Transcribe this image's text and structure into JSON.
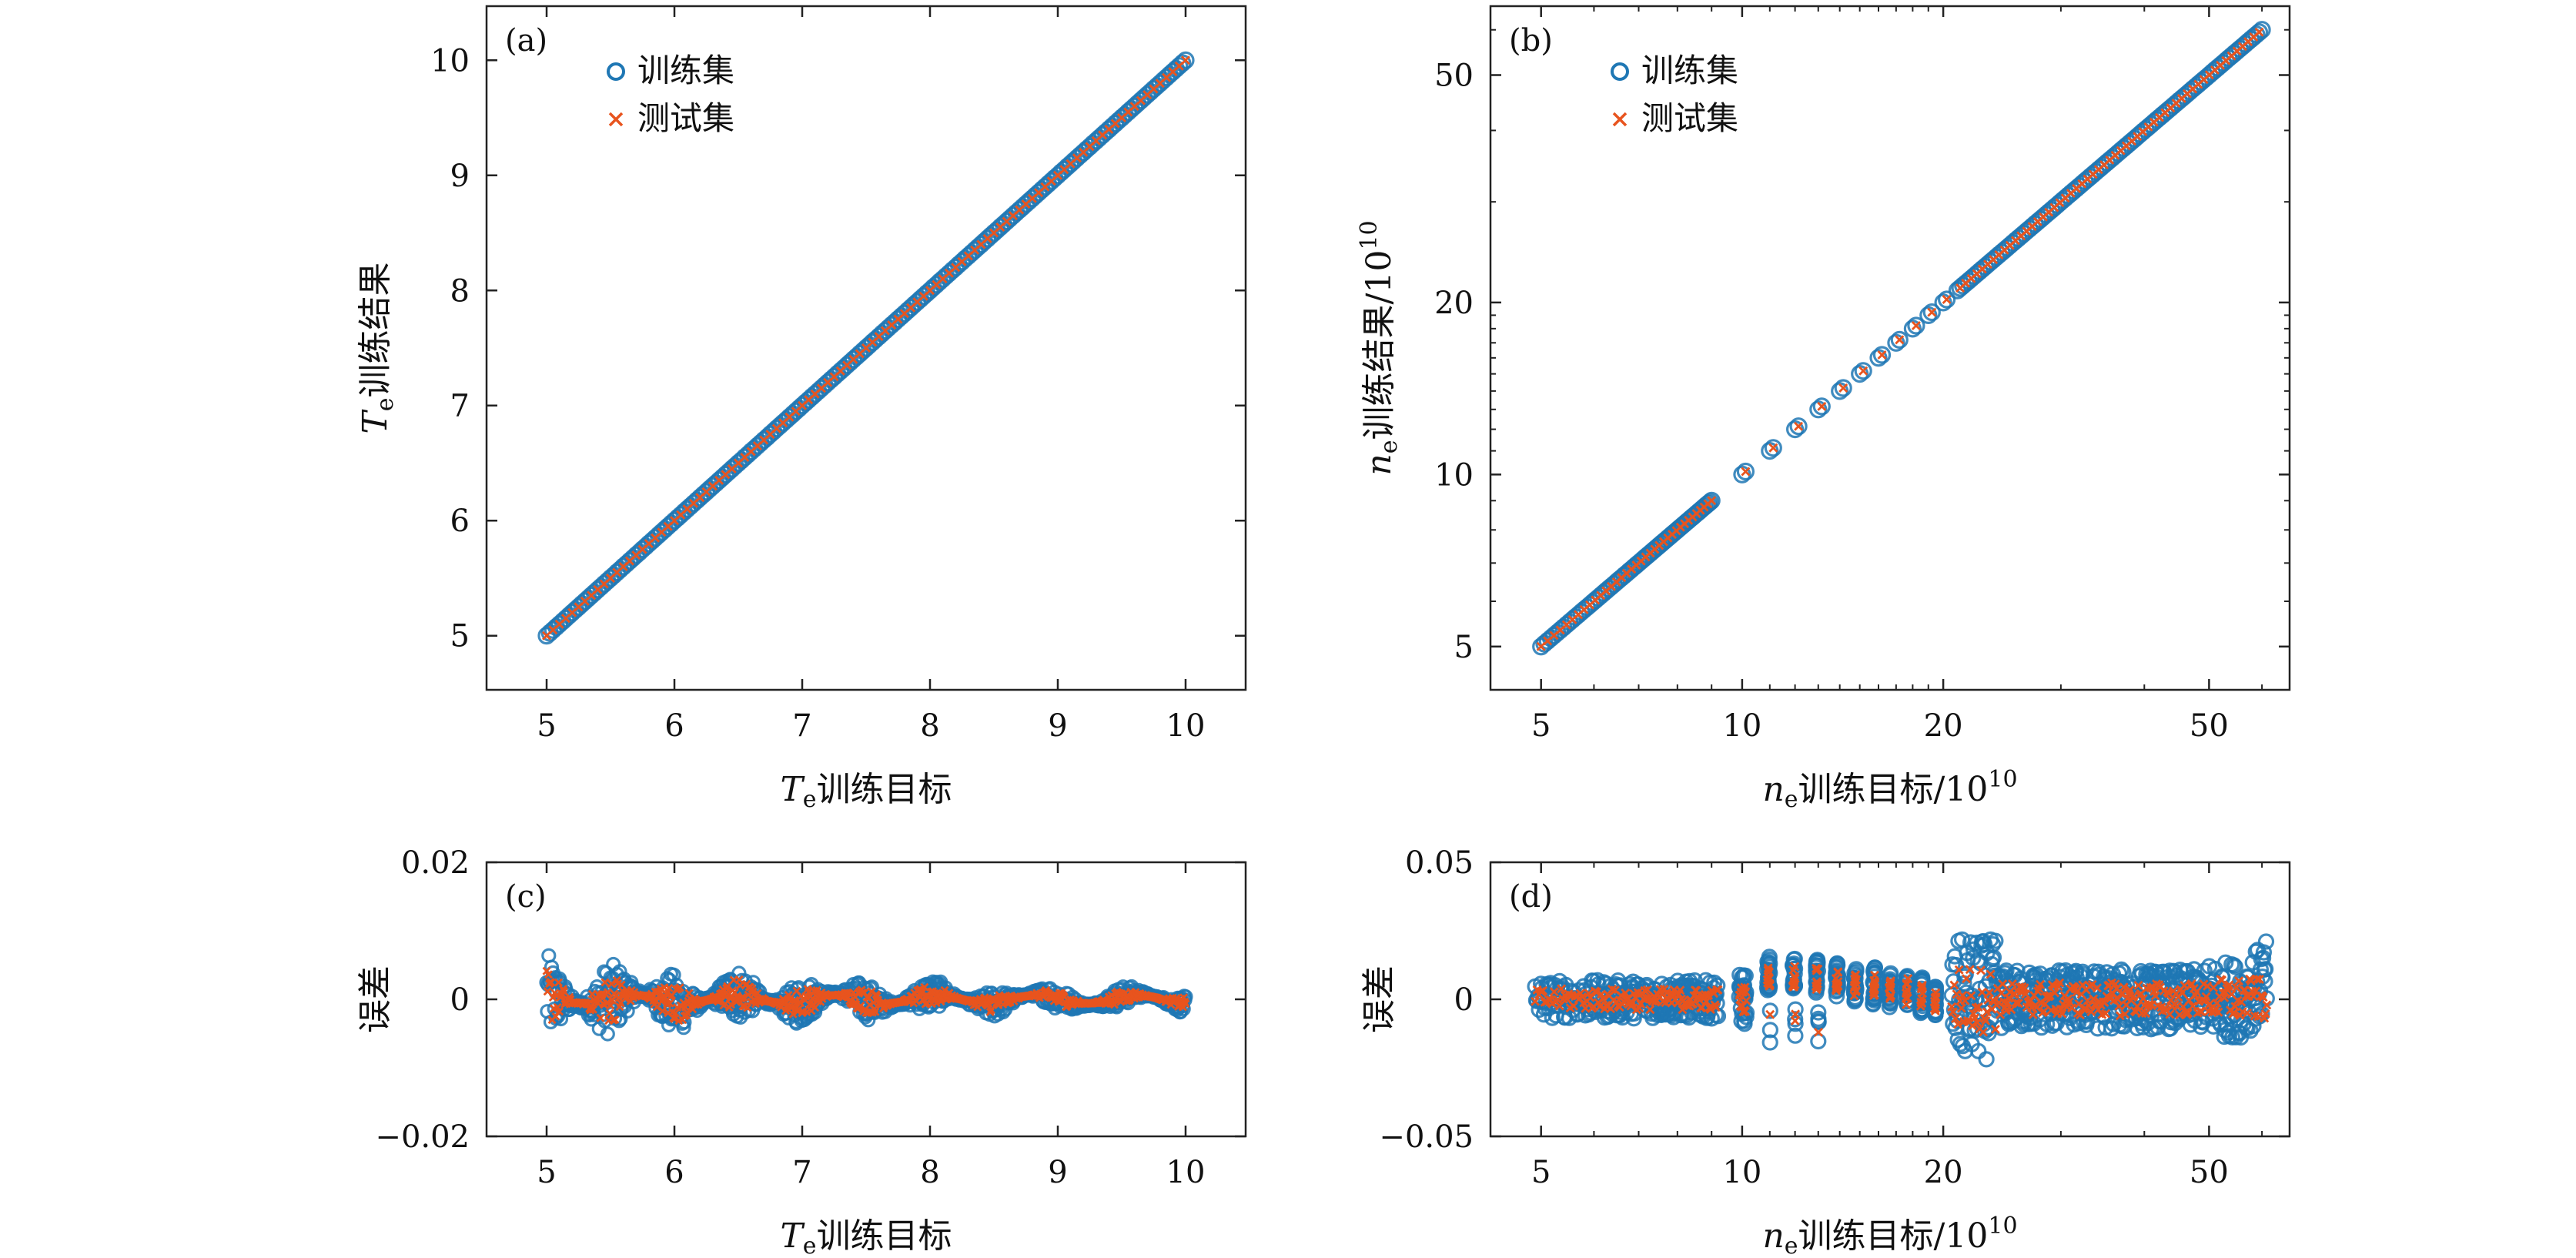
{
  "colors": {
    "train": "#1f77b4",
    "test": "#e8541e",
    "axis": "#222222"
  },
  "legend": {
    "train_label": "训练集",
    "test_label": "测试集"
  },
  "chart_data": [
    {
      "id": "a",
      "type": "scatter",
      "panel_label": "(a)",
      "xlabel": {
        "italic": "T",
        "sub": "e",
        "text": "训练目标",
        "exp": ""
      },
      "ylabel": {
        "italic": "T",
        "sub": "e",
        "text": "训练结果",
        "exp": ""
      },
      "scale": "linear",
      "xlim": [
        4.53,
        10.47
      ],
      "ylim": [
        4.53,
        10.47
      ],
      "xticks": [
        5,
        6,
        7,
        8,
        9,
        10
      ],
      "yticks": [
        5,
        6,
        7,
        8,
        9,
        10
      ],
      "series": [
        {
          "name": "训练集",
          "x_range": [
            5,
            10
          ],
          "relation": "y = x"
        },
        {
          "name": "测试集",
          "x_range": [
            5,
            10
          ],
          "relation": "y = x"
        }
      ]
    },
    {
      "id": "b",
      "type": "scatter",
      "panel_label": "(b)",
      "xlabel": {
        "italic": "n",
        "sub": "e",
        "text": "训练目标/10",
        "exp": "10"
      },
      "ylabel": {
        "italic": "n",
        "sub": "e",
        "text": "训练结果/10",
        "exp": "10"
      },
      "scale": "log",
      "xlim": [
        4.2,
        66
      ],
      "ylim": [
        4.2,
        66
      ],
      "xticks": [
        5,
        10,
        20,
        50
      ],
      "yticks": [
        5,
        10,
        20,
        50
      ],
      "series": [
        {
          "name": "训练集",
          "x_range": [
            5,
            60
          ],
          "gaps": [
            [
              9,
              10
            ],
            [
              20,
              21
            ]
          ],
          "relation": "y = x"
        },
        {
          "name": "测试集",
          "x_range": [
            5,
            60
          ],
          "gaps": [
            [
              9,
              10
            ],
            [
              20,
              21
            ]
          ],
          "relation": "y = x"
        }
      ]
    },
    {
      "id": "c",
      "type": "scatter",
      "panel_label": "(c)",
      "xlabel": {
        "italic": "T",
        "sub": "e",
        "text": "训练目标",
        "exp": ""
      },
      "ylabel": {
        "italic": "",
        "sub": "",
        "text": "误差",
        "exp": ""
      },
      "scale": "linear",
      "xlim": [
        4.53,
        10.47
      ],
      "ylim": [
        -0.02,
        0.02
      ],
      "xticks": [
        5,
        6,
        7,
        8,
        9,
        10
      ],
      "yticks": [
        0.02,
        0,
        -0.02
      ],
      "ytick_labels": [
        "0.02",
        "0",
        "−0.02"
      ],
      "series": [
        {
          "name": "训练集",
          "x_range": [
            5,
            10
          ],
          "error_envelope_max": 0.006,
          "error_envelope_min": -0.007
        },
        {
          "name": "测试集",
          "x_range": [
            5,
            10
          ],
          "error_envelope_max": 0.004,
          "error_envelope_min": -0.004
        }
      ]
    },
    {
      "id": "d",
      "type": "scatter",
      "panel_label": "(d)",
      "xlabel": {
        "italic": "n",
        "sub": "e",
        "text": "训练目标/10",
        "exp": "10"
      },
      "ylabel": {
        "italic": "",
        "sub": "",
        "text": "误差",
        "exp": ""
      },
      "scale": "log-x",
      "xlim": [
        4.2,
        66
      ],
      "ylim": [
        -0.05,
        0.05
      ],
      "xticks": [
        5,
        10,
        20,
        50
      ],
      "yticks": [
        0.05,
        0,
        -0.05
      ],
      "ytick_labels": [
        "0.05",
        "0",
        "−0.05"
      ],
      "series": [
        {
          "name": "训练集",
          "x_range": [
            5,
            60
          ],
          "error_envelope_max": 0.025,
          "error_envelope_min": -0.025
        },
        {
          "name": "测试集",
          "x_range": [
            5,
            60
          ],
          "error_envelope_max": 0.012,
          "error_envelope_min": -0.014
        }
      ]
    }
  ]
}
